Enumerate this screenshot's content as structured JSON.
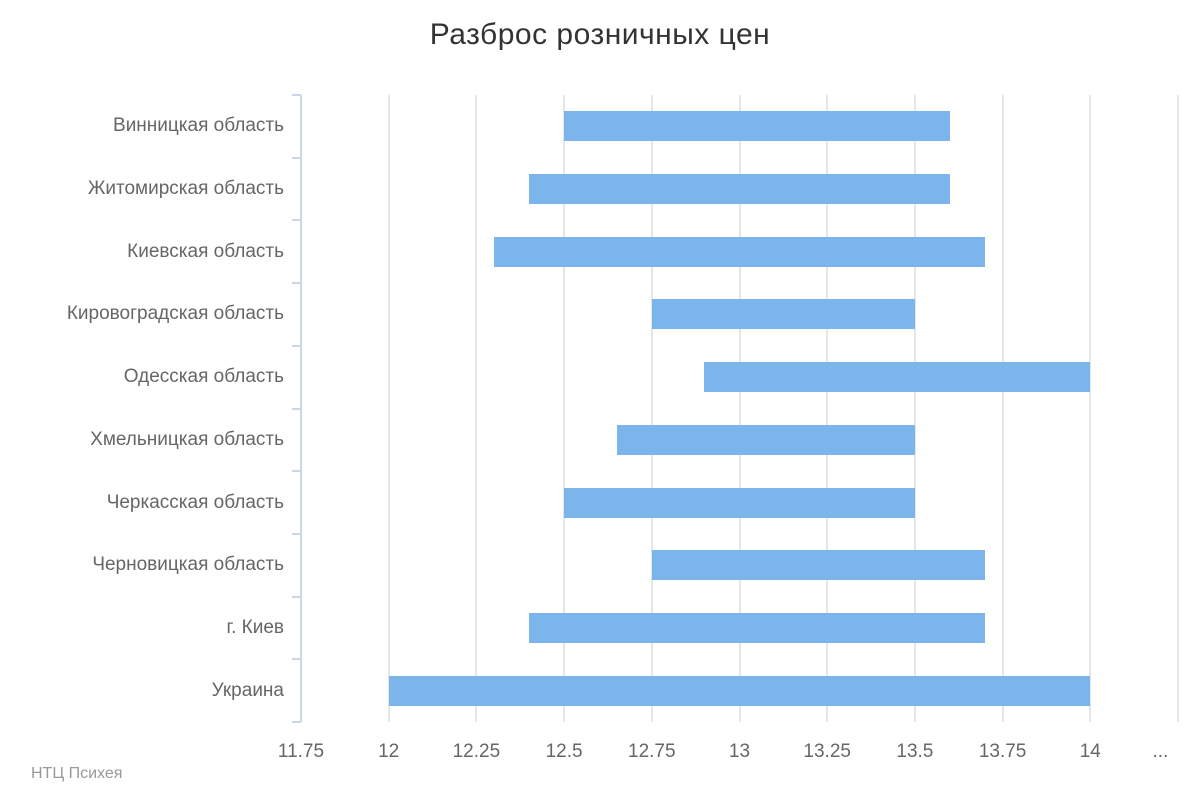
{
  "chart_data": {
    "type": "bar",
    "subtype": "horizontal-range-bars",
    "title": "Разброс розничных цен",
    "categories": [
      "Винницкая область",
      "Житомирская область",
      "Киевская область",
      "Кировоградская область",
      "Одесская область",
      "Хмельницкая область",
      "Черкасская область",
      "Черновицкая область",
      "г. Киев",
      "Украина"
    ],
    "values": [
      [
        12.5,
        13.6
      ],
      [
        12.4,
        13.6
      ],
      [
        12.3,
        13.7
      ],
      [
        12.75,
        13.5
      ],
      [
        12.9,
        14.0
      ],
      [
        12.65,
        13.5
      ],
      [
        12.5,
        13.5
      ],
      [
        12.75,
        13.7
      ],
      [
        12.4,
        13.7
      ],
      [
        12.0,
        14.0
      ]
    ],
    "xlabel": "",
    "ylabel": "",
    "xlim": [
      11.75,
      14.25
    ],
    "x_tick_labels": [
      "11.75",
      "12",
      "12.25",
      "12.5",
      "12.75",
      "13",
      "13.25",
      "13.5",
      "13.75",
      "14",
      "..."
    ],
    "x_tick_values": [
      11.75,
      12,
      12.25,
      12.5,
      12.75,
      13,
      13.25,
      13.5,
      13.75,
      14,
      14.2
    ],
    "gridline_values": [
      12,
      12.25,
      12.5,
      12.75,
      13,
      13.25,
      13.5,
      13.75,
      14,
      14.25
    ],
    "grid": "vertical",
    "legend": "none",
    "colors": {
      "bar": "#7cb5ec",
      "gridline": "#e6e6e6",
      "axis": "#ccd6eb",
      "title": "#333333",
      "labels": "#666666",
      "credits": "#999999"
    },
    "credits": "НТЦ Психея"
  }
}
